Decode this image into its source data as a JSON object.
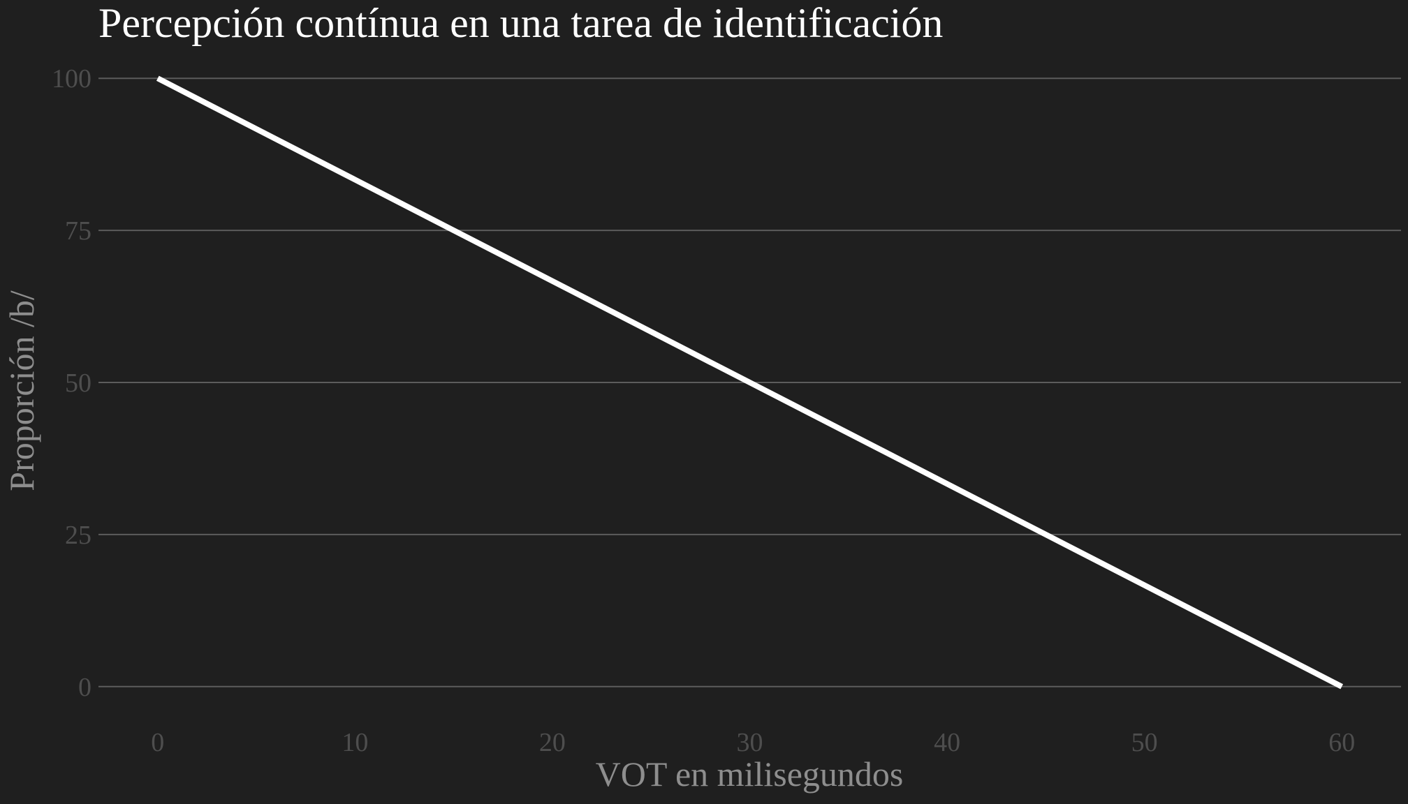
{
  "chart_data": {
    "type": "line",
    "title": "Percepción contínua en una tarea de identificación",
    "xlabel": "VOT en milisegundos",
    "ylabel": "Proporción /b/",
    "xlim": [
      -3,
      63
    ],
    "ylim": [
      -3.7,
      103.7
    ],
    "x_ticks": [
      0,
      10,
      20,
      30,
      40,
      50,
      60
    ],
    "y_ticks": [
      0,
      25,
      50,
      75,
      100
    ],
    "grid": "horizontal",
    "series": [
      {
        "x": [
          0,
          60
        ],
        "y": [
          100,
          0
        ],
        "color": "#ffffff"
      }
    ],
    "colors": {
      "background": "#1f1f1f",
      "grid": "#5c5c5c",
      "title": "#ffffff",
      "axis_title": "#8e8e8e",
      "tick_label": "#4e4e4e"
    }
  }
}
